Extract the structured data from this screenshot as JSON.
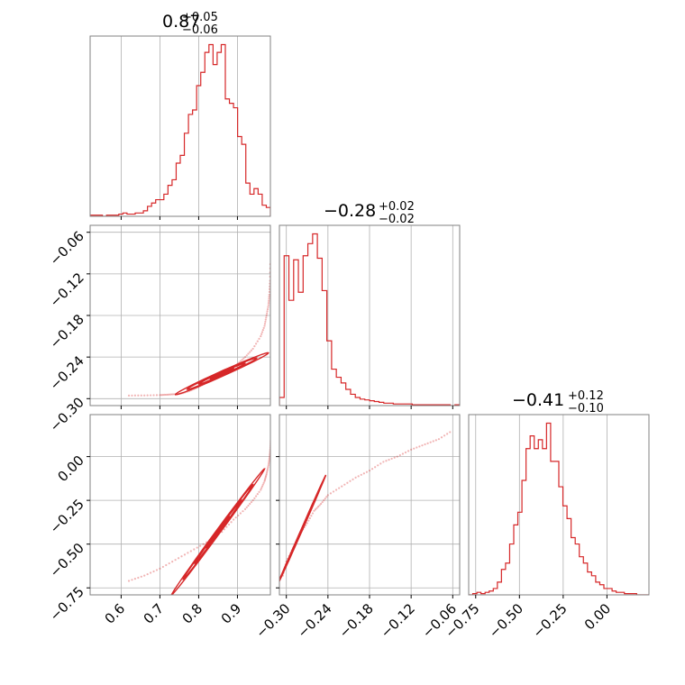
{
  "chart_data": {
    "type": "corner",
    "color": "#d62728",
    "parameters": [
      {
        "range": [
          0.52,
          0.985
        ],
        "ticks": [
          "0.6",
          "0.7",
          "0.8",
          "0.9"
        ],
        "tick_values": [
          0.6,
          0.7,
          0.8,
          0.9
        ],
        "title": {
          "median": "0.87",
          "upper": "+0.05",
          "lower": "−0.06"
        }
      },
      {
        "range": [
          -0.31,
          -0.05
        ],
        "ticks": [
          "−0.30",
          "−0.24",
          "−0.18",
          "−0.12",
          "−0.06"
        ],
        "tick_values": [
          -0.3,
          -0.24,
          -0.18,
          -0.12,
          -0.06
        ],
        "title": {
          "median": "−0.28",
          "upper": "+0.02",
          "lower": "−0.02"
        }
      },
      {
        "range": [
          -0.79,
          0.24
        ],
        "ticks": [
          "−0.75",
          "−0.50",
          "−0.25",
          "0.00"
        ],
        "tick_values": [
          -0.75,
          -0.5,
          -0.25,
          0.0
        ],
        "title": {
          "median": "−0.41",
          "upper": "+0.12",
          "lower": "−0.10"
        }
      }
    ],
    "histograms": [
      {
        "param": 0,
        "counts": [
          1,
          1,
          1,
          0,
          1,
          1,
          1,
          2,
          3,
          2,
          2,
          3,
          3,
          5,
          9,
          12,
          15,
          15,
          20,
          28,
          33,
          48,
          55,
          75,
          92,
          96,
          118,
          130,
          148,
          155,
          137,
          148,
          155,
          106,
          102,
          98,
          72,
          65,
          30,
          20,
          25,
          20,
          10,
          8
        ]
      },
      {
        "param": 1,
        "counts": [
          10,
          185,
          130,
          180,
          140,
          185,
          200,
          212,
          182,
          142,
          80,
          45,
          35,
          28,
          20,
          14,
          10,
          8,
          7,
          6,
          5,
          4,
          3,
          3,
          2,
          2,
          2,
          2,
          1,
          1,
          1,
          1,
          1,
          1,
          1,
          1,
          0,
          1
        ]
      },
      {
        "param": 2,
        "counts": [
          0,
          1,
          2,
          1,
          2,
          3,
          5,
          10,
          20,
          25,
          40,
          55,
          65,
          90,
          115,
          125,
          115,
          122,
          115,
          135,
          105,
          105,
          85,
          70,
          60,
          45,
          40,
          30,
          25,
          18,
          15,
          10,
          8,
          5,
          5,
          3,
          2,
          2,
          1,
          1,
          1,
          0,
          0,
          0
        ]
      }
    ],
    "scatter": [
      {
        "x_param": 0,
        "y_param": 1,
        "points": [
          [
            0.62,
            -0.2955
          ],
          [
            0.66,
            -0.2953
          ],
          [
            0.7,
            -0.2948
          ],
          [
            0.72,
            -0.2942
          ],
          [
            0.74,
            -0.2935
          ],
          [
            0.76,
            -0.292
          ],
          [
            0.78,
            -0.288
          ],
          [
            0.8,
            -0.283
          ],
          [
            0.82,
            -0.277
          ],
          [
            0.84,
            -0.271
          ],
          [
            0.86,
            -0.265
          ],
          [
            0.88,
            -0.258
          ],
          [
            0.9,
            -0.25
          ],
          [
            0.92,
            -0.24
          ],
          [
            0.94,
            -0.228
          ],
          [
            0.96,
            -0.21
          ],
          [
            0.97,
            -0.195
          ],
          [
            0.975,
            -0.18
          ],
          [
            0.98,
            -0.165
          ],
          [
            0.982,
            -0.15
          ],
          [
            0.984,
            -0.13
          ],
          [
            0.985,
            -0.1
          ]
        ]
      },
      {
        "x_param": 0,
        "y_param": 2,
        "points": [
          [
            0.62,
            -0.71
          ],
          [
            0.66,
            -0.68
          ],
          [
            0.7,
            -0.64
          ],
          [
            0.74,
            -0.59
          ],
          [
            0.78,
            -0.54
          ],
          [
            0.82,
            -0.49
          ],
          [
            0.86,
            -0.43
          ],
          [
            0.89,
            -0.36
          ],
          [
            0.92,
            -0.3
          ],
          [
            0.94,
            -0.25
          ],
          [
            0.96,
            -0.19
          ],
          [
            0.97,
            -0.14
          ],
          [
            0.975,
            -0.1
          ],
          [
            0.98,
            -0.05
          ],
          [
            0.983,
            0.0
          ],
          [
            0.985,
            0.05
          ],
          [
            0.986,
            0.1
          ]
        ]
      },
      {
        "x_param": 1,
        "y_param": 2,
        "points": [
          [
            -0.305,
            -0.68
          ],
          [
            -0.3,
            -0.6
          ],
          [
            -0.29,
            -0.52
          ],
          [
            -0.28,
            -0.44
          ],
          [
            -0.27,
            -0.38
          ],
          [
            -0.26,
            -0.31
          ],
          [
            -0.25,
            -0.27
          ],
          [
            -0.24,
            -0.22
          ],
          [
            -0.22,
            -0.17
          ],
          [
            -0.2,
            -0.12
          ],
          [
            -0.18,
            -0.08
          ],
          [
            -0.16,
            -0.03
          ],
          [
            -0.14,
            0.0
          ],
          [
            -0.12,
            0.04
          ],
          [
            -0.1,
            0.07
          ],
          [
            -0.08,
            0.1
          ],
          [
            -0.06,
            0.15
          ]
        ]
      }
    ],
    "contours": [
      {
        "x_param": 0,
        "y_param": 1,
        "center": [
          0.86,
          -0.264
        ],
        "along": 0.12,
        "across": 0.004,
        "angle_slope": 0.25
      },
      {
        "x_param": 0,
        "y_param": 2,
        "center": [
          0.85,
          -0.43
        ],
        "along": 0.12,
        "across": 0.02,
        "angle_slope": 3.0
      },
      {
        "x_param": 1,
        "y_param": 2,
        "center": [
          -0.278,
          -0.42
        ],
        "along": 0.035,
        "across": 0.01,
        "angle_slope": 9.0
      }
    ],
    "grid": true
  }
}
